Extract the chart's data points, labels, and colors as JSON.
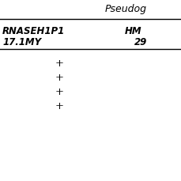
{
  "header_text": "Pseudog",
  "col1_line1": "RNASEH1P1",
  "col1_line2": "17.1MY",
  "col2_line1": "HM",
  "col2_line2": "29",
  "plus_signs": [
    "+",
    "+",
    "+",
    "+"
  ],
  "bg_color": "#ffffff",
  "text_color": "#000000",
  "font_size": 8.5,
  "figsize": [
    2.29,
    2.29
  ],
  "dpi": 100
}
